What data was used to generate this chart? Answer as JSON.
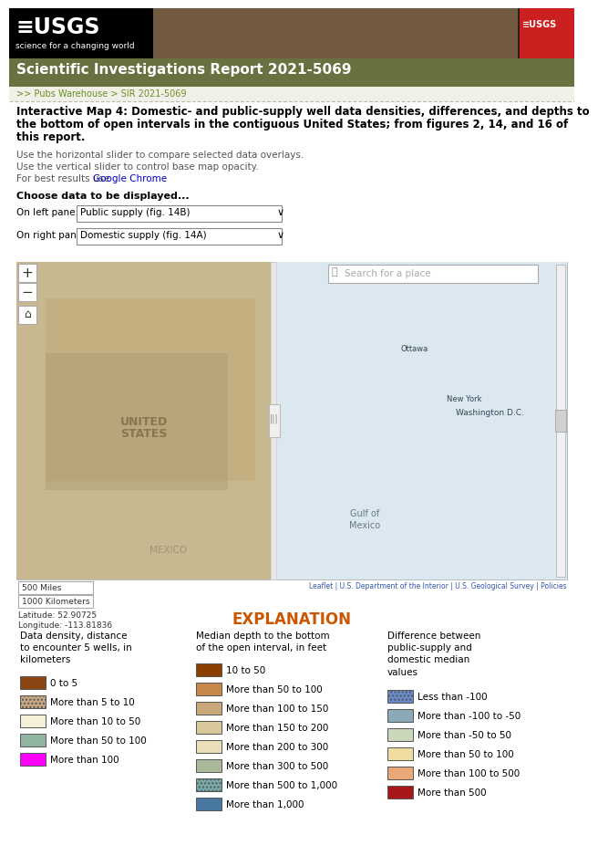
{
  "header_bg": "#6b7040",
  "header_text": "Scientific Investigations Report 2021-5069",
  "breadcrumb_text": ">> Pubs Warehouse > SIR 2021-5069",
  "title_line1": "Interactive Map 4: Domestic- and public-supply well data densities, differences, and depths to",
  "title_line2": "the bottom of open intervals in the contiguous United States; from figures 2, 14, and 16 of",
  "title_line3": "this report.",
  "inst1": "Use the horizontal slider to compare selected data overlays.",
  "inst2": "Use the vertical slider to control base map opacity.",
  "inst3_pre": "For best results use ",
  "inst3_link": "Google Chrome",
  "inst3_post": ".",
  "choose_label": "Choose data to be displayed...",
  "left_pane_label": "On left pane:",
  "left_pane_value": "Public supply (fig. 14B)",
  "right_pane_label": "On right pane:",
  "right_pane_value": "Domestic supply (fig. 14A)",
  "scale_bar_1": "500 Miles",
  "scale_bar_2": "1000 Kilometers",
  "lat_text": "Latitude: 52.90725",
  "lon_text": "Longitude: -113.81836",
  "leaflet_text": "Leaflet | U.S. Department of the Interior | U.S. Geological Survey | Policies",
  "explanation_title": "EXPLANATION",
  "col1_title": "Data density, distance\nto encounter 5 wells, in\nkilometers",
  "col1_items": [
    {
      "color": "#8B4513",
      "label": "0 to 5",
      "hatch": ""
    },
    {
      "color": "#C8A882",
      "label": "More than 5 to 10",
      "hatch": "...."
    },
    {
      "color": "#F5F0D8",
      "label": "More than 10 to 50",
      "hatch": ""
    },
    {
      "color": "#8FB5A0",
      "label": "More than 50 to 100",
      "hatch": ""
    },
    {
      "color": "#FF00FF",
      "label": "More than 100",
      "hatch": ""
    }
  ],
  "col2_title": "Median depth to the bottom\nof the open interval, in feet",
  "col2_items": [
    {
      "color": "#8B4000",
      "label": "10 to 50",
      "hatch": ""
    },
    {
      "color": "#C8884A",
      "label": "More than 50 to 100",
      "hatch": ""
    },
    {
      "color": "#C8A87A",
      "label": "More than 100 to 150",
      "hatch": ""
    },
    {
      "color": "#D8C89A",
      "label": "More than 150 to 200",
      "hatch": ""
    },
    {
      "color": "#E8DFB8",
      "label": "More than 200 to 300",
      "hatch": ""
    },
    {
      "color": "#A8B898",
      "label": "More than 300 to 500",
      "hatch": ""
    },
    {
      "color": "#78A8A8",
      "label": "More than 500 to 1,000",
      "hatch": "...."
    },
    {
      "color": "#4878A0",
      "label": "More than 1,000",
      "hatch": ""
    }
  ],
  "col3_title": "Difference between\npublic-supply and\ndomestic median\nvalues",
  "col3_items": [
    {
      "color": "#6B8CC8",
      "label": "Less than -100",
      "hatch": "...."
    },
    {
      "color": "#8AAAB8",
      "label": "More than -100 to -50",
      "hatch": ""
    },
    {
      "color": "#C8D8B8",
      "label": "More than -50 to 50",
      "hatch": ""
    },
    {
      "color": "#F0DCA0",
      "label": "More than 50 to 100",
      "hatch": ""
    },
    {
      "color": "#E8A878",
      "label": "More than 100 to 500",
      "hatch": ""
    },
    {
      "color": "#A81818",
      "label": "More than 500",
      "hatch": ""
    }
  ]
}
